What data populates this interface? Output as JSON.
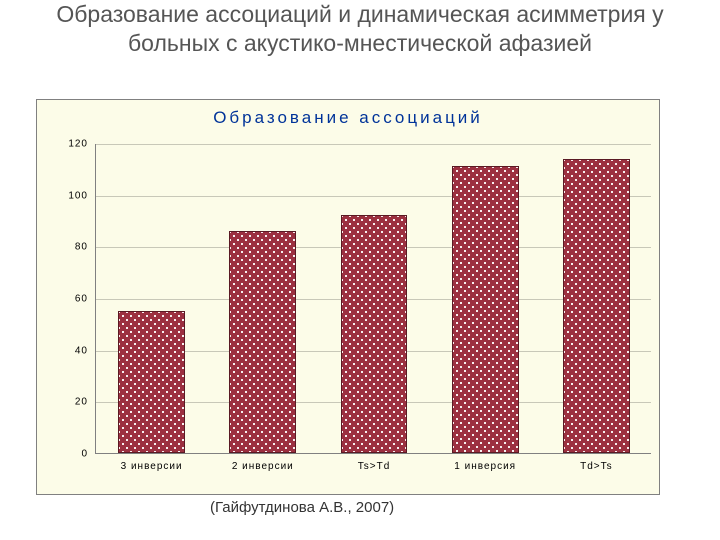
{
  "slide_title": "Образование ассоциаций и динамическая асимметрия у больных с акустико-мнестической афазией",
  "citation": "(Гайфутдинова А.В., 2007)",
  "chart": {
    "type": "bar",
    "title": "Образование ассоциаций",
    "title_color": "#003399",
    "title_fontsize": 17,
    "title_letter_spacing": 3,
    "background_color": "#fcfce8",
    "grid_color": "#c8c8b8",
    "axis_color": "#808080",
    "bar_fill_color": "#9c3040",
    "bar_pattern_dot_color": "#ffffff",
    "bar_border_color": "#5a1a24",
    "bar_width": 0.6,
    "ylim": [
      0,
      120
    ],
    "ytick_step": 20,
    "yticks": [
      "0",
      "20",
      "40",
      "60",
      "80",
      "100",
      "120"
    ],
    "tick_fontsize": 10,
    "tick_color": "#000000",
    "categories": [
      "3 инверсии",
      "2 инверсии",
      "Ts>Td",
      "1 инверсия",
      "Td>Ts"
    ],
    "values": [
      55,
      86,
      92,
      111,
      114
    ]
  }
}
